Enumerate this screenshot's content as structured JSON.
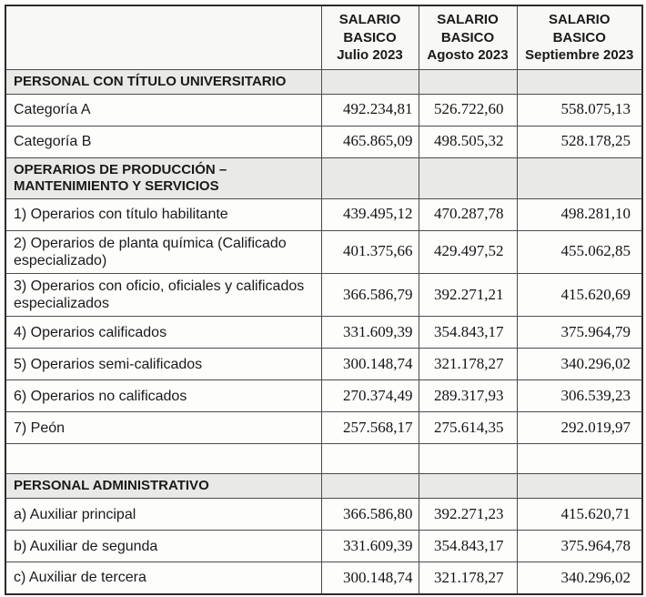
{
  "table": {
    "title": "tabla-salarios-basicos",
    "columns": [
      {
        "header": "SALARIO\nBASICO\nJulio 2023"
      },
      {
        "header": "SALARIO\nBASICO\nAgosto 2023"
      },
      {
        "header": "SALARIO\nBASICO\nSeptiembre 2023"
      }
    ],
    "rows": [
      {
        "type": "section",
        "label": "PERSONAL CON TÍTULO UNIVERSITARIO",
        "values": [
          "",
          "",
          ""
        ]
      },
      {
        "type": "data",
        "label": "Categoría A",
        "values": [
          "492.234,81",
          "526.722,60",
          "558.075,13"
        ]
      },
      {
        "type": "data",
        "label": "Categoría B",
        "values": [
          "465.865,09",
          "498.505,32",
          "528.178,25"
        ]
      },
      {
        "type": "section",
        "label": "OPERARIOS DE PRODUCCIÓN –\nMANTENIMIENTO Y SERVICIOS",
        "values": [
          "",
          "",
          ""
        ]
      },
      {
        "type": "data",
        "label": "1) Operarios con título habilitante",
        "values": [
          "439.495,12",
          "470.287,78",
          "498.281,10"
        ]
      },
      {
        "type": "data",
        "label": "2) Operarios de planta química (Calificado especializado)",
        "values": [
          "401.375,66",
          "429.497,52",
          "455.062,85"
        ]
      },
      {
        "type": "data",
        "label": "3) Operarios con oficio, oficiales y calificados especializados",
        "values": [
          "366.586,79",
          "392.271,21",
          "415.620,69"
        ]
      },
      {
        "type": "data",
        "label": "4) Operarios calificados",
        "values": [
          "331.609,39",
          "354.843,17",
          "375.964,79"
        ]
      },
      {
        "type": "data",
        "label": "5) Operarios semi-calificados",
        "values": [
          "300.148,74",
          "321.178,27",
          "340.296,02"
        ]
      },
      {
        "type": "data",
        "label": "6) Operarios no calificados",
        "values": [
          "270.374,49",
          "289.317,93",
          "306.539,23"
        ]
      },
      {
        "type": "data",
        "label": "7) Peón",
        "values": [
          "257.568,17",
          "275.614,35",
          "292.019,97"
        ]
      },
      {
        "type": "empty",
        "label": "",
        "values": [
          "",
          "",
          ""
        ]
      },
      {
        "type": "section",
        "label": "PERSONAL ADMINISTRATIVO",
        "values": [
          "",
          "",
          ""
        ]
      },
      {
        "type": "data",
        "label": "a) Auxiliar principal",
        "values": [
          "366.586,80",
          "392.271,23",
          "415.620,71"
        ]
      },
      {
        "type": "data",
        "label": "b) Auxiliar de segunda",
        "values": [
          "331.609,39",
          "354.843,17",
          "375.964,78"
        ]
      },
      {
        "type": "data",
        "label": "c) Auxiliar de tercera",
        "values": [
          "300.148,74",
          "321.178,27",
          "340.296,02"
        ]
      }
    ]
  },
  "colors": {
    "paper": "#fdfdfc",
    "section_fill": "#e9eae7",
    "header_fill": "#f8f8f6",
    "border_outer": "#2b2b2b",
    "border_inner": "#4c4c4c",
    "text": "#1a1a1a"
  }
}
